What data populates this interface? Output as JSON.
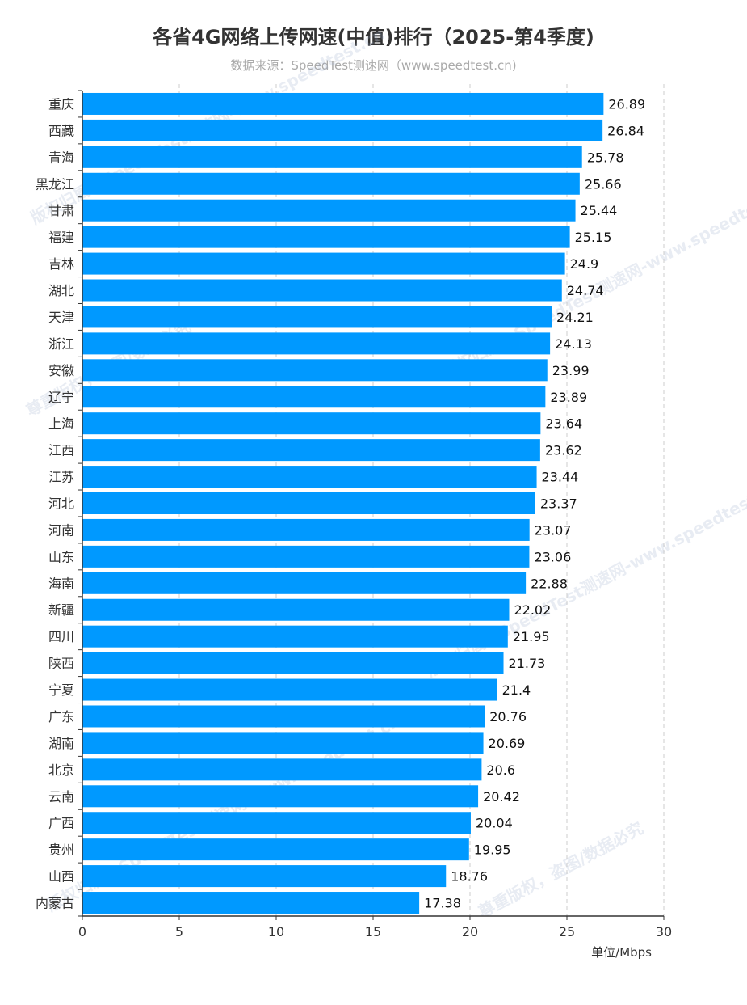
{
  "chart_data": {
    "type": "bar",
    "orientation": "horizontal",
    "title": "各省4G网络上传网速(中值)排行（2025-第4季度)",
    "subtitle": "数据来源：SpeedTest测速网（www.speedtest.cn)",
    "xlabel": "单位/Mbps",
    "ylabel": "",
    "xlim": [
      0,
      30
    ],
    "xticks": [
      "0",
      "5",
      "10",
      "15",
      "20",
      "25",
      "30"
    ],
    "grid": "vertical-dashed",
    "bar_color": "#0099ff",
    "categories": [
      "重庆",
      "西藏",
      "青海",
      "黑龙江",
      "甘肃",
      "福建",
      "吉林",
      "湖北",
      "天津",
      "浙江",
      "安徽",
      "辽宁",
      "上海",
      "江西",
      "江苏",
      "河北",
      "河南",
      "山东",
      "海南",
      "新疆",
      "四川",
      "陕西",
      "宁夏",
      "广东",
      "湖南",
      "北京",
      "云南",
      "广西",
      "贵州",
      "山西",
      "内蒙古"
    ],
    "values": [
      26.89,
      26.84,
      25.78,
      25.66,
      25.44,
      25.15,
      24.9,
      24.74,
      24.21,
      24.13,
      23.99,
      23.89,
      23.64,
      23.62,
      23.44,
      23.37,
      23.07,
      23.06,
      22.88,
      22.02,
      21.95,
      21.73,
      21.4,
      20.76,
      20.69,
      20.6,
      20.42,
      20.04,
      19.95,
      18.76,
      17.38
    ],
    "value_labels": [
      "26.89",
      "26.84",
      "25.78",
      "25.66",
      "25.44",
      "25.15",
      "24.9",
      "24.74",
      "24.21",
      "24.13",
      "23.99",
      "23.89",
      "23.64",
      "23.62",
      "23.44",
      "23.37",
      "23.07",
      "23.06",
      "22.88",
      "22.02",
      "21.95",
      "21.73",
      "21.4",
      "20.76",
      "20.69",
      "20.6",
      "20.42",
      "20.04",
      "19.95",
      "18.76",
      "17.38"
    ]
  },
  "watermark": {
    "line1": "版权归属：SpeedTest测速网-www.speedtest.cn",
    "line2": "尊重版权，盗图/数据必究"
  }
}
